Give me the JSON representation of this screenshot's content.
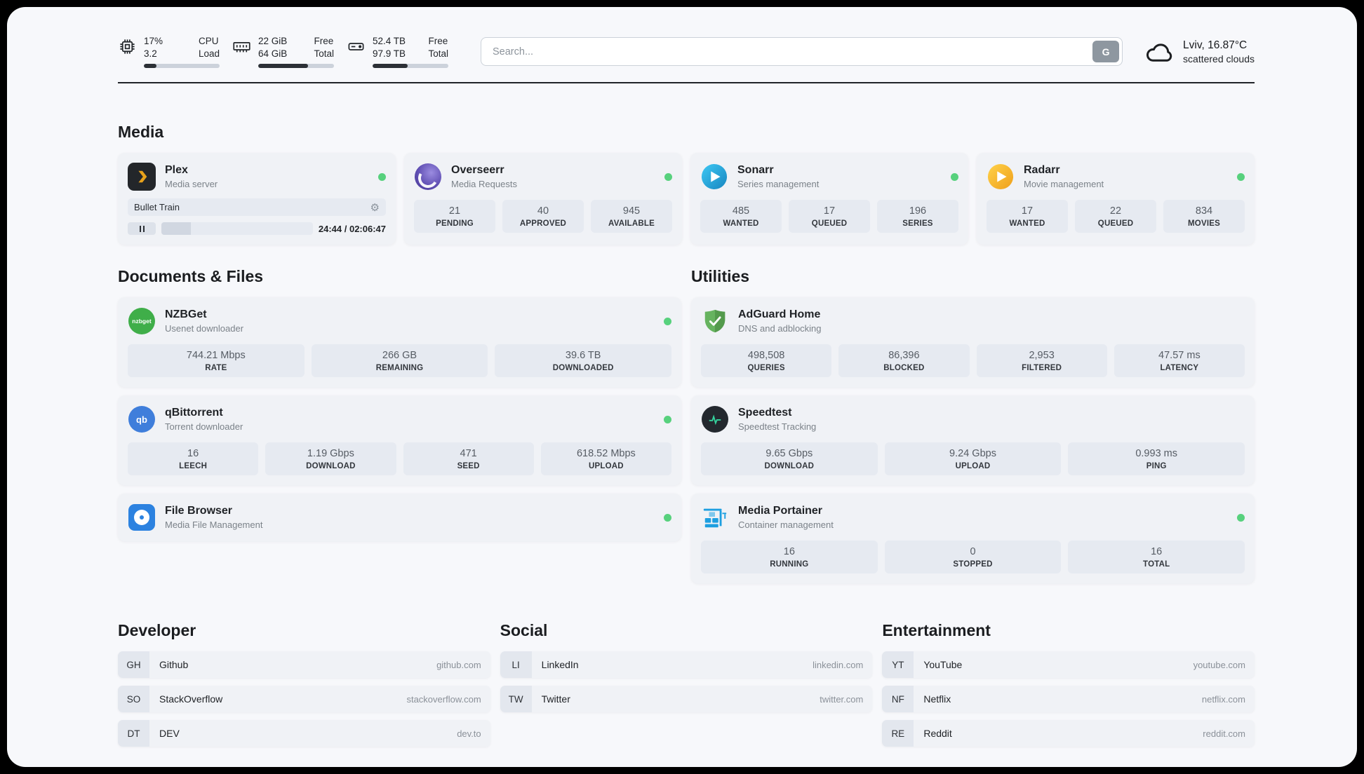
{
  "header": {
    "cpu": {
      "values": [
        "17%",
        "3.2"
      ],
      "labels": [
        "CPU",
        "Load"
      ],
      "progress_percent": 17
    },
    "ram": {
      "values": [
        "22 GiB",
        "64 GiB"
      ],
      "labels": [
        "Free",
        "Total"
      ],
      "progress_percent": 66
    },
    "disk": {
      "values": [
        "52.4 TB",
        "97.9 TB"
      ],
      "labels": [
        "Free",
        "Total"
      ],
      "progress_percent": 46
    },
    "search": {
      "placeholder": "Search...",
      "engine": "G"
    },
    "weather": {
      "location": "Lviv, 16.87°C",
      "condition": "scattered clouds"
    }
  },
  "sections": {
    "media": "Media",
    "documents": "Documents & Files",
    "utilities": "Utilities",
    "developer": "Developer",
    "social": "Social",
    "entertainment": "Entertainment"
  },
  "icons": {
    "gear_glyph": "⚙"
  },
  "colors": {
    "status_online": "#57d17d",
    "plex_gold": "#e8a21b",
    "sonarr_blue": "#2aa8dd",
    "radarr_amber": "#f5b325",
    "nzbget_green": "#3fae49",
    "adguard_green": "#66b35f",
    "portainer_blue": "#1d9fe0"
  },
  "apps": {
    "plex": {
      "name": "Plex",
      "subtitle": "Media server",
      "now_playing": "Bullet Train",
      "time": "24:44 / 02:06:47",
      "progress_percent": 19.5
    },
    "overseerr": {
      "name": "Overseerr",
      "subtitle": "Media Requests",
      "stats": [
        {
          "value": "21",
          "label": "PENDING"
        },
        {
          "value": "40",
          "label": "APPROVED"
        },
        {
          "value": "945",
          "label": "AVAILABLE"
        }
      ]
    },
    "sonarr": {
      "name": "Sonarr",
      "subtitle": "Series management",
      "stats": [
        {
          "value": "485",
          "label": "WANTED"
        },
        {
          "value": "17",
          "label": "QUEUED"
        },
        {
          "value": "196",
          "label": "SERIES"
        }
      ]
    },
    "radarr": {
      "name": "Radarr",
      "subtitle": "Movie management",
      "stats": [
        {
          "value": "17",
          "label": "WANTED"
        },
        {
          "value": "22",
          "label": "QUEUED"
        },
        {
          "value": "834",
          "label": "MOVIES"
        }
      ]
    },
    "nzbget": {
      "name": "NZBGet",
      "subtitle": "Usenet downloader",
      "icon_text": "nzbget",
      "stats": [
        {
          "value": "744.21 Mbps",
          "label": "RATE"
        },
        {
          "value": "266 GB",
          "label": "REMAINING"
        },
        {
          "value": "39.6 TB",
          "label": "DOWNLOADED"
        }
      ]
    },
    "qbittorrent": {
      "name": "qBittorrent",
      "subtitle": "Torrent downloader",
      "icon_text": "qb",
      "stats": [
        {
          "value": "16",
          "label": "LEECH"
        },
        {
          "value": "1.19 Gbps",
          "label": "DOWNLOAD"
        },
        {
          "value": "471",
          "label": "SEED"
        },
        {
          "value": "618.52 Mbps",
          "label": "UPLOAD"
        }
      ]
    },
    "filebrowser": {
      "name": "File Browser",
      "subtitle": "Media File Management"
    },
    "adguard": {
      "name": "AdGuard Home",
      "subtitle": "DNS and adblocking",
      "stats": [
        {
          "value": "498,508",
          "label": "QUERIES"
        },
        {
          "value": "86,396",
          "label": "BLOCKED"
        },
        {
          "value": "2,953",
          "label": "FILTERED"
        },
        {
          "value": "47.57 ms",
          "label": "LATENCY"
        }
      ]
    },
    "speedtest": {
      "name": "Speedtest",
      "subtitle": "Speedtest Tracking",
      "stats": [
        {
          "value": "9.65 Gbps",
          "label": "DOWNLOAD"
        },
        {
          "value": "9.24 Gbps",
          "label": "UPLOAD"
        },
        {
          "value": "0.993 ms",
          "label": "PING"
        }
      ]
    },
    "portainer": {
      "name": "Media Portainer",
      "subtitle": "Container management",
      "stats": [
        {
          "value": "16",
          "label": "RUNNING"
        },
        {
          "value": "0",
          "label": "STOPPED"
        },
        {
          "value": "16",
          "label": "TOTAL"
        }
      ]
    }
  },
  "bookmarks": {
    "developer": [
      {
        "abbr": "GH",
        "name": "Github",
        "url": "github.com"
      },
      {
        "abbr": "SO",
        "name": "StackOverflow",
        "url": "stackoverflow.com"
      },
      {
        "abbr": "DT",
        "name": "DEV",
        "url": "dev.to"
      }
    ],
    "social": [
      {
        "abbr": "LI",
        "name": "LinkedIn",
        "url": "linkedin.com"
      },
      {
        "abbr": "TW",
        "name": "Twitter",
        "url": "twitter.com"
      }
    ],
    "entertainment": [
      {
        "abbr": "YT",
        "name": "YouTube",
        "url": "youtube.com"
      },
      {
        "abbr": "NF",
        "name": "Netflix",
        "url": "netflix.com"
      },
      {
        "abbr": "RE",
        "name": "Reddit",
        "url": "reddit.com"
      }
    ]
  }
}
